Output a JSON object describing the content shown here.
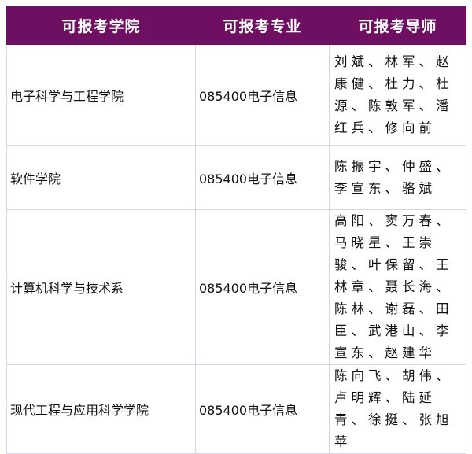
{
  "header": {
    "college": "可报考学院",
    "major": "可报考专业",
    "tutors": "可报考导师"
  },
  "header_color": "#6e0f62",
  "rows": [
    {
      "college": "电子科学与工程学院",
      "major": "085400电子信息",
      "tutors": "刘斌、林军、赵康健、杜力、杜源、陈敦军、潘红兵、修向前"
    },
    {
      "college": "软件学院",
      "major": "085400电子信息",
      "tutors": "陈振宇、仲盛、李宣东、骆斌"
    },
    {
      "college": "计算机科学与技术系",
      "major": "085400电子信息",
      "tutors": "高阳、窦万春、马晓星、王崇骏、叶保留、王林章、聂长海、陈林、谢磊、田臣、武港山、李宣东、赵建华"
    },
    {
      "college": "现代工程与应用科学学院",
      "major": "085400电子信息",
      "tutors": "陈向飞、胡伟、卢明辉、陆延青、徐挺、张旭苹"
    }
  ]
}
